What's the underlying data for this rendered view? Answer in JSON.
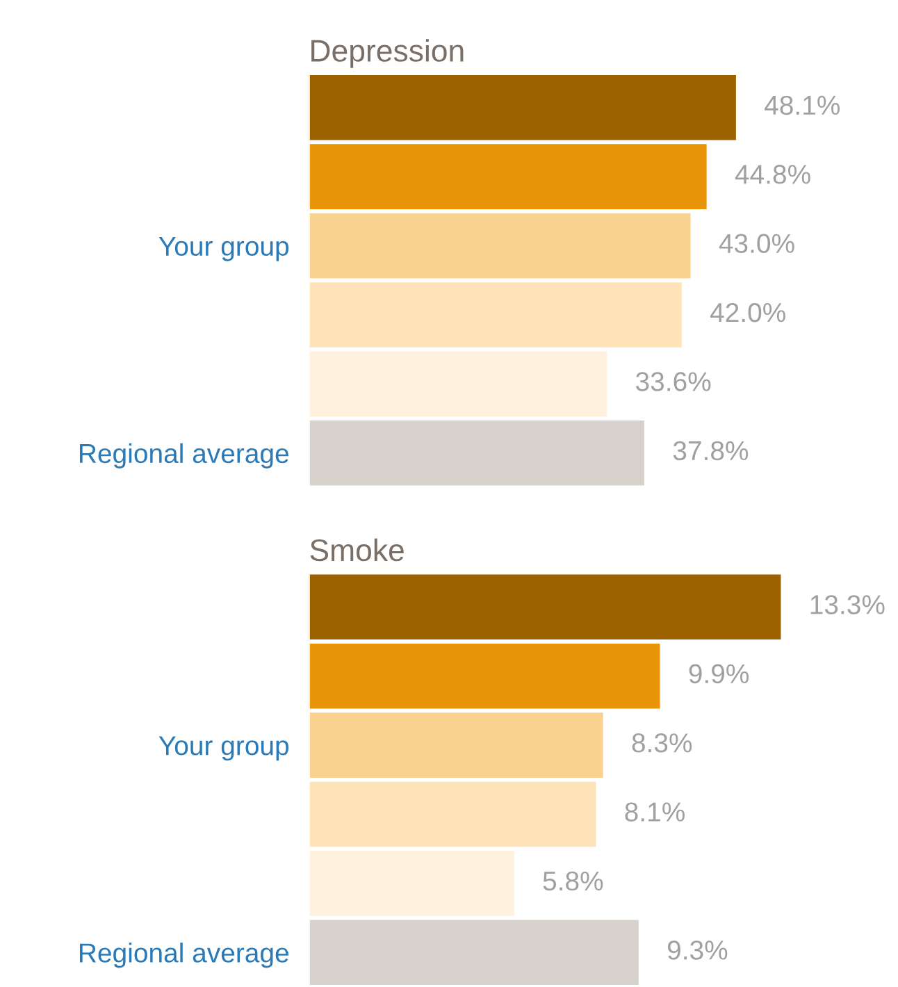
{
  "chart_data": [
    {
      "type": "bar",
      "orientation": "horizontal",
      "title": "Depression",
      "categories": [
        null,
        null,
        "Your group",
        null,
        null,
        "Regional average"
      ],
      "values": [
        48.1,
        44.8,
        43.0,
        42.0,
        33.6,
        37.8
      ],
      "value_labels": [
        "48.1%",
        "44.8%",
        "43.0%",
        "42.0%",
        "33.6%",
        "37.8%"
      ],
      "colors": [
        "#9c6200",
        "#e8950a",
        "#fad28f",
        "#fde3b7",
        "#fef1de",
        "#d7d2cc"
      ],
      "tick_labels": "y",
      "grid": false,
      "legend": false
    },
    {
      "type": "bar",
      "orientation": "horizontal",
      "title": "Smoke",
      "categories": [
        null,
        null,
        "Your group",
        null,
        null,
        "Regional average"
      ],
      "values": [
        13.3,
        9.9,
        8.3,
        8.1,
        5.8,
        9.3
      ],
      "value_labels": [
        "13.3%",
        "9.9%",
        "8.3%",
        "8.1%",
        "5.8%",
        "9.3%"
      ],
      "colors": [
        "#9c6200",
        "#e8950a",
        "#fad28f",
        "#fde3b7",
        "#fef1de",
        "#d7d2cc"
      ],
      "tick_labels": "y",
      "grid": false,
      "legend": false
    }
  ]
}
